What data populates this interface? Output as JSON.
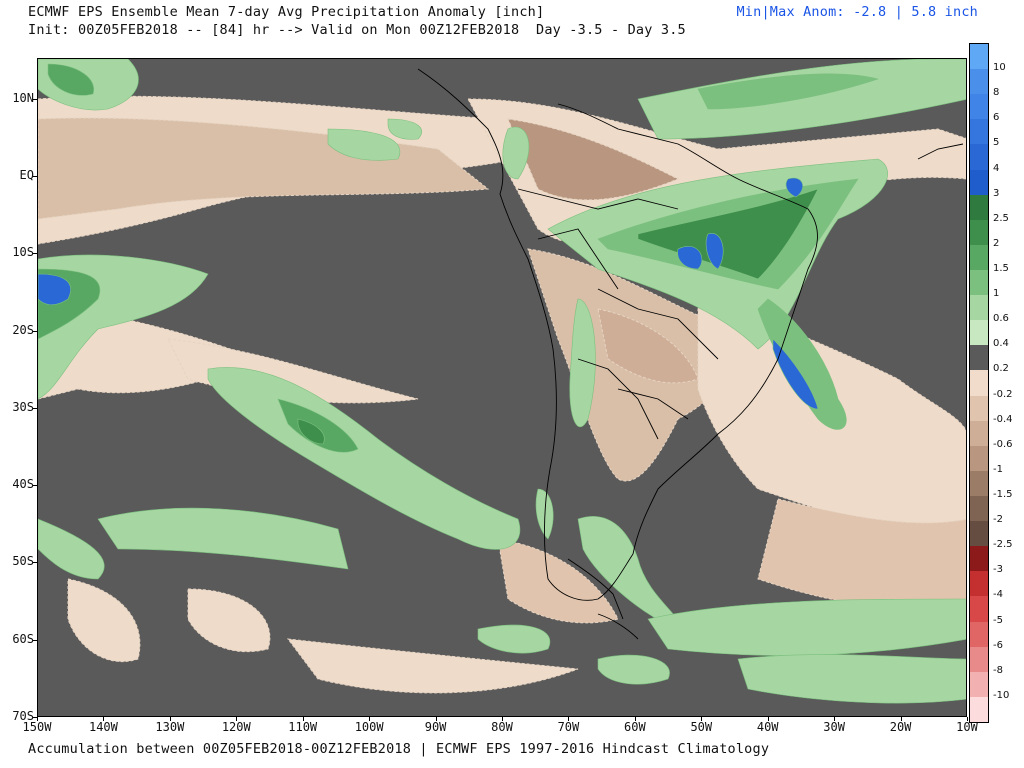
{
  "header": {
    "title_line_1": "ECMWF EPS Ensemble Mean 7-day Avg Precipitation Anomaly [inch]",
    "title_line_2": "Init: 00Z05FEB2018 -- [84] hr --> Valid on Mon 00Z12FEB2018  Day -3.5 - Day 3.5",
    "minmax": "Min|Max Anom: -2.8 | 5.8 inch"
  },
  "footer": {
    "text": "Accumulation between 00Z05FEB2018-00Z12FEB2018 | ECMWF EPS 1997-2016 Hindcast Climatology"
  },
  "map": {
    "lat_labels": [
      "10N",
      "EQ",
      "10S",
      "20S",
      "30S",
      "40S",
      "50S",
      "60S",
      "70S"
    ],
    "lon_labels": [
      "150W",
      "140W",
      "130W",
      "120W",
      "110W",
      "100W",
      "90W",
      "80W",
      "70W",
      "60W",
      "50W",
      "40W",
      "30W",
      "20W",
      "10W"
    ]
  },
  "colorbar": {
    "levels": [
      {
        "label": "10",
        "color": "#5fa8f5"
      },
      {
        "label": "8",
        "color": "#4a90ea"
      },
      {
        "label": "6",
        "color": "#3f84e6"
      },
      {
        "label": "5",
        "color": "#3476de"
      },
      {
        "label": "4",
        "color": "#2a68d6"
      },
      {
        "label": "3",
        "color": "#1f5ccc"
      },
      {
        "label": "2.5",
        "color": "#2f7a3e"
      },
      {
        "label": "2",
        "color": "#3f8f4c"
      },
      {
        "label": "1.5",
        "color": "#58a863"
      },
      {
        "label": "1",
        "color": "#7cc07f"
      },
      {
        "label": "0.6",
        "color": "#a6d6a2"
      },
      {
        "label": "0.4",
        "color": "#c8e8c2"
      },
      {
        "label": "0.2",
        "color": "#5a5a5a"
      },
      {
        "label": "-0.2",
        "color": "#f1dccb"
      },
      {
        "label": "-0.4",
        "color": "#e0c4ad"
      },
      {
        "label": "-0.6",
        "color": "#cfae97"
      },
      {
        "label": "-1",
        "color": "#b8967f"
      },
      {
        "label": "-1.5",
        "color": "#9b7c67"
      },
      {
        "label": "-2",
        "color": "#7f6453"
      },
      {
        "label": "-2.5",
        "color": "#654e41"
      },
      {
        "label": "-3",
        "color": "#8c1a1a"
      },
      {
        "label": "-4",
        "color": "#c43030"
      },
      {
        "label": "-5",
        "color": "#d94848"
      },
      {
        "label": "-6",
        "color": "#e06666"
      },
      {
        "label": "-8",
        "color": "#e98a8a"
      },
      {
        "label": "-10",
        "color": "#f2b0b0"
      },
      {
        "label": "",
        "color": "#fcdcdc"
      }
    ]
  }
}
